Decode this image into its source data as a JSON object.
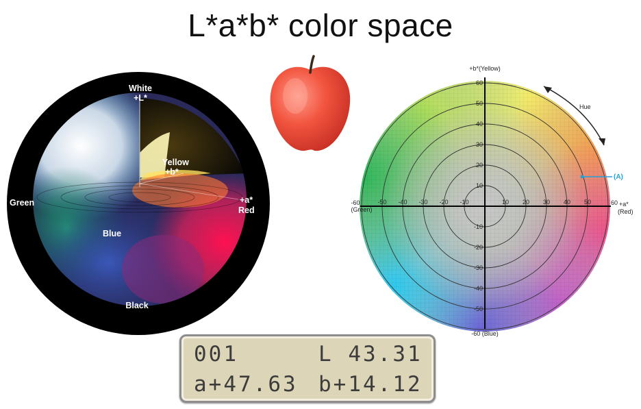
{
  "title": "L*a*b* color space",
  "sphere": {
    "white_label": "White",
    "l_label": "+L*",
    "yellow_label": "Yellow",
    "b_label": "+b*",
    "green_label": "Green",
    "a_label": "+a*",
    "red_label": "Red",
    "blue_label": "Blue",
    "black_label": "Black"
  },
  "ab_diagram": {
    "top_axis_label": "+b*(Yellow)",
    "bottom_axis_label": "-60 (Blue)",
    "left_axis_value": "-60",
    "left_axis_label": "(Green)",
    "right_axis_value": "60",
    "right_axis_a": "+a*",
    "right_axis_label": "(Red)",
    "hue_label": "Hue",
    "point_label": "(A)",
    "x_ticks": [
      "-50",
      "-40",
      "-30",
      "-20",
      "-10",
      "10",
      "20",
      "30",
      "40",
      "50"
    ],
    "y_ticks_pos": [
      "60",
      "50",
      "40",
      "30",
      "20",
      "10"
    ],
    "y_ticks_neg": [
      "-10",
      "-20",
      "-30",
      "-40",
      "-50"
    ]
  },
  "readout": {
    "sample": "001",
    "l_value": "L 43.31",
    "a_value": "a+47.63",
    "b_value": "b+14.12"
  }
}
